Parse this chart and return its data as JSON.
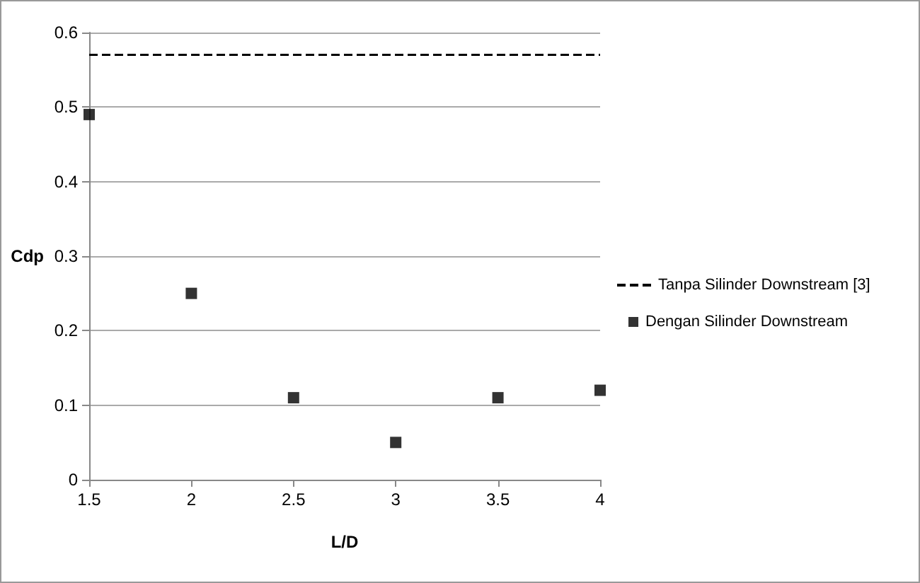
{
  "chart_data": {
    "type": "scatter",
    "xlabel": "L/D",
    "ylabel": "Cdp",
    "x": [
      1.5,
      2,
      2.5,
      3,
      3.5,
      4
    ],
    "series": [
      {
        "name": "Tanpa Silinder Downstream [3]",
        "type": "line",
        "x": [
          1.5,
          4
        ],
        "values": [
          0.57,
          0.57
        ],
        "color": "#000000",
        "line_style": "dashed",
        "marker": "none"
      },
      {
        "name": "Dengan Silinder Downstream",
        "type": "scatter",
        "values": [
          0.49,
          0.25,
          0.11,
          0.05,
          0.11,
          0.12
        ],
        "color": "#000000",
        "marker": "square"
      }
    ],
    "xlim": [
      1.5,
      4
    ],
    "xticks": [
      1.5,
      2,
      2.5,
      3,
      3.5,
      4
    ],
    "ylim": [
      0,
      0.6
    ],
    "yticks": [
      0,
      0.1,
      0.2,
      0.3,
      0.4,
      0.5,
      0.6
    ],
    "grid": "y",
    "legend": "right"
  }
}
